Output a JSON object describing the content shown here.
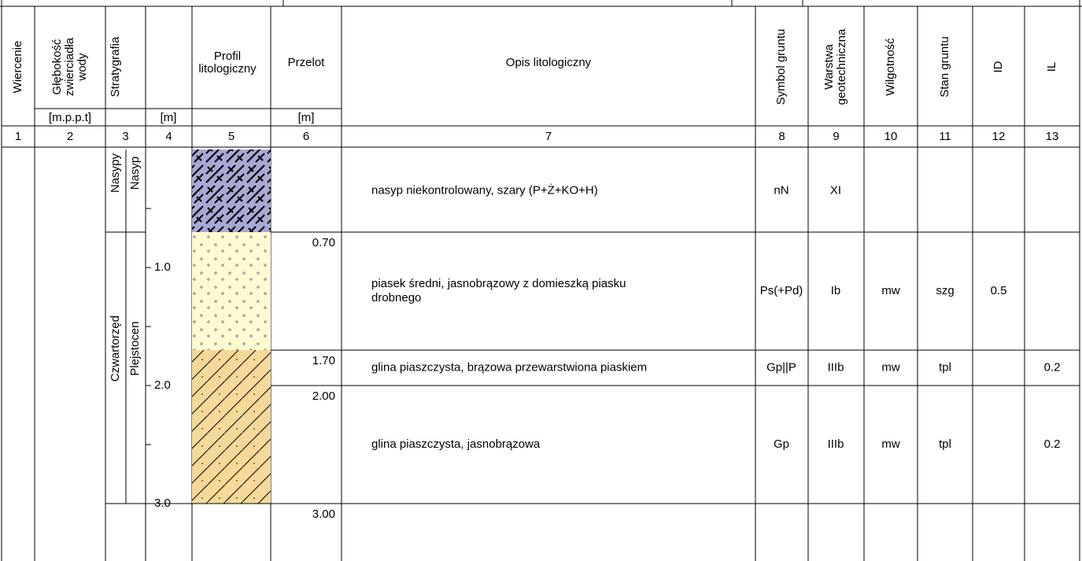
{
  "header": {
    "columns": [
      [
        "Wiercenie"
      ],
      [
        "Głębokość",
        "zwierciadła",
        "wody"
      ],
      [
        "Stratygrafia"
      ],
      [
        "Profil",
        "litologiczny"
      ],
      [
        "Przelot"
      ],
      [
        "Opis litologiczny"
      ],
      [
        "Symbol gruntu"
      ],
      [
        "Warstwa",
        "geotechniczna"
      ],
      [
        "Wilgotność"
      ],
      [
        "Stan gruntu"
      ],
      [
        "ID"
      ],
      [
        "IL"
      ]
    ],
    "units": [
      "[m.p.p.t]",
      "[m]",
      "[m]"
    ],
    "numbers": [
      "1",
      "2",
      "3",
      "4",
      "5",
      "6",
      "7",
      "8",
      "9",
      "10",
      "11",
      "12",
      "13"
    ]
  },
  "stratigraphy": [
    {
      "group": "Nasypy",
      "unit": "Nasyp"
    },
    {
      "group": "Czwartorzęd",
      "unit": "Plejstocen"
    }
  ],
  "scale": [
    "1.0",
    "2.0",
    "3.0"
  ],
  "layers": [
    {
      "bottom": "0.70",
      "description": [
        "nasyp niekontrolowany, szary (P+Ż+KO+H)"
      ],
      "symbol": "nN",
      "layer": "XI"
    },
    {
      "bottom": "1.70",
      "description": [
        "piasek średni, jasnobrązowy z domieszką piasku",
        "drobnego"
      ],
      "symbol": "Ps(+Pd)",
      "layer": "Ib",
      "moisture": "mw",
      "state": "szg",
      "ID": "0.5"
    },
    {
      "bottom": "2.00",
      "description": [
        "glina piaszczysta, brązowa przewarstwiona piaskiem"
      ],
      "symbol": "Gp||P",
      "layer": "IIIb",
      "moisture": "mw",
      "state": "tpl",
      "IL": "0.2"
    },
    {
      "bottom": "3.00",
      "description": [
        "glina piaszczysta, jasnobrązowa"
      ],
      "symbol": "Gp",
      "layer": "IIIb",
      "moisture": "mw",
      "state": "tpl",
      "IL": "0.2"
    }
  ]
}
